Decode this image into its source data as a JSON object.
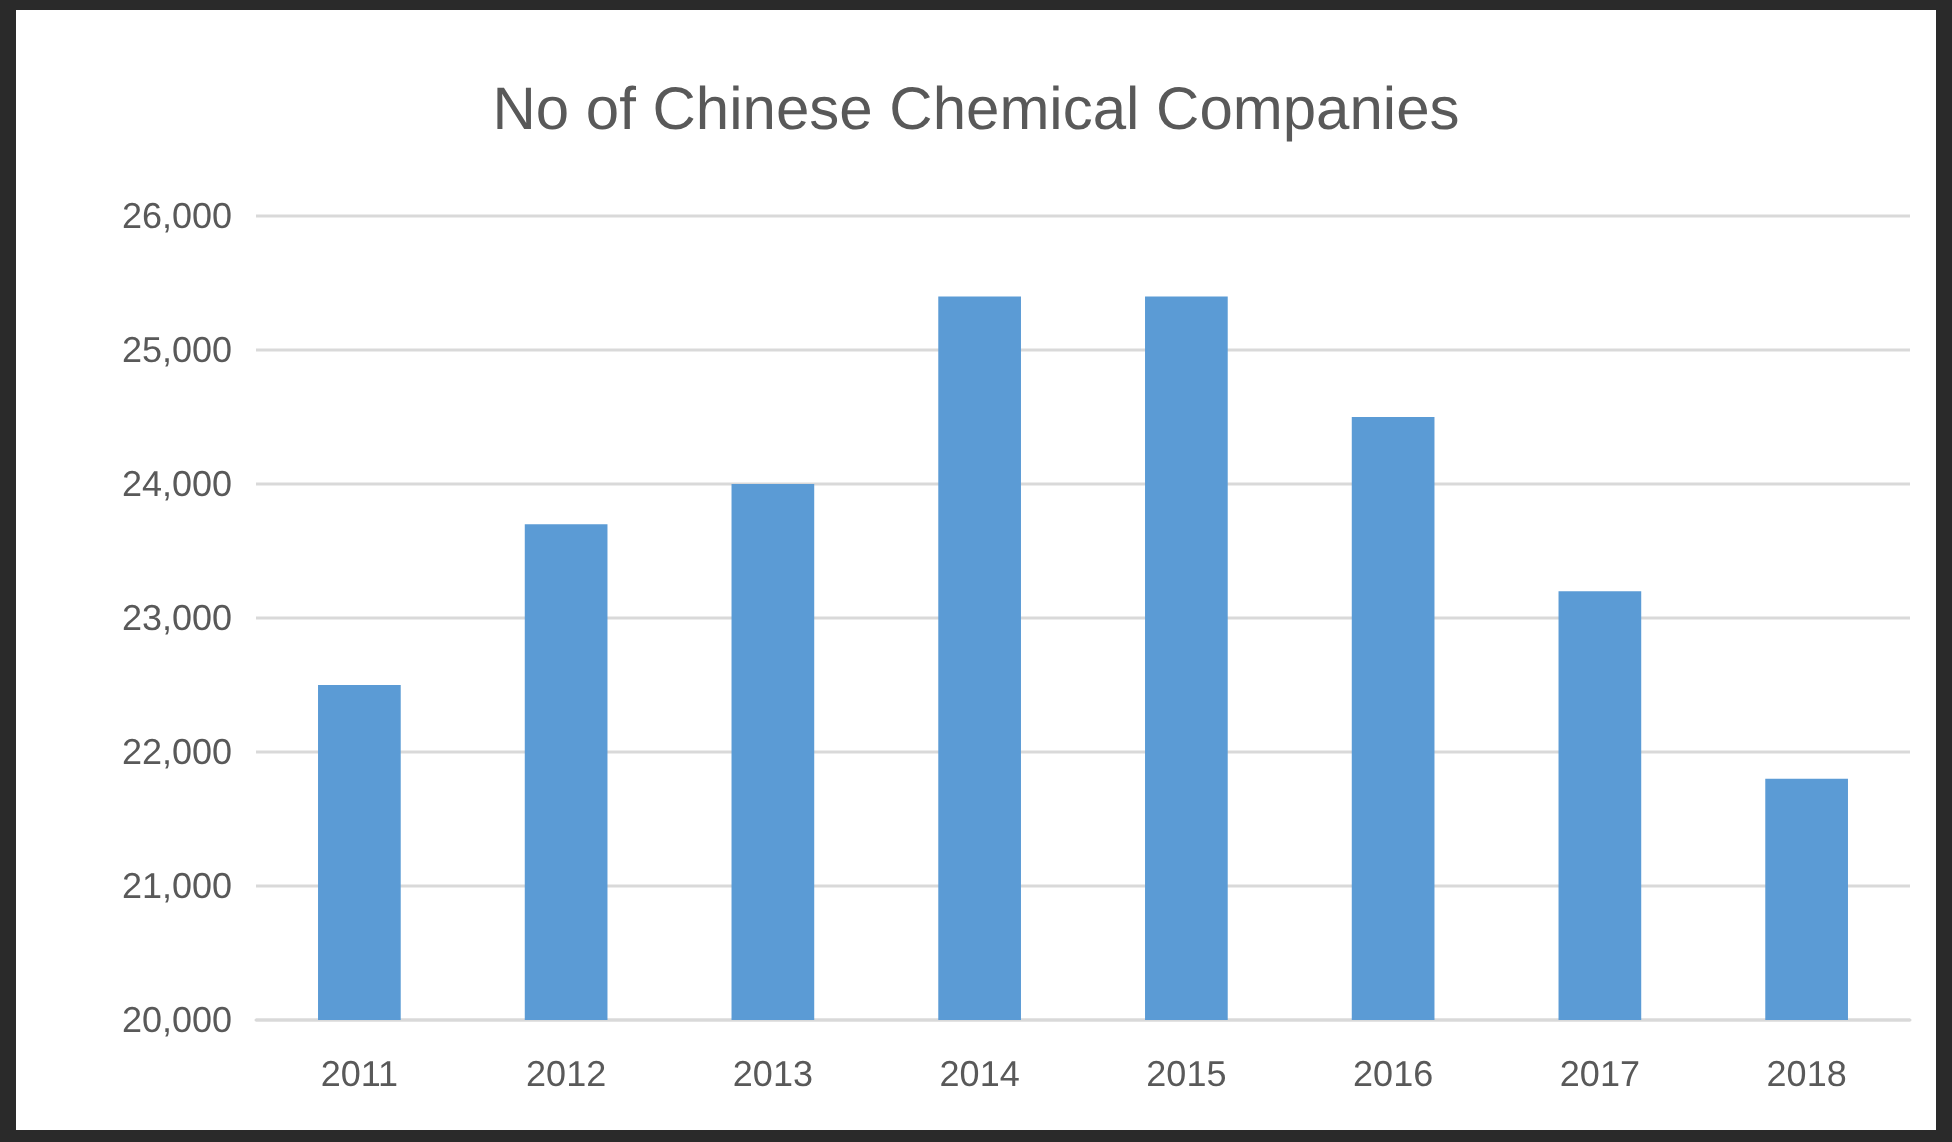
{
  "chart_data": {
    "type": "bar",
    "title": "No of Chinese Chemical Companies",
    "categories": [
      "2011",
      "2012",
      "2013",
      "2014",
      "2015",
      "2016",
      "2017",
      "2018"
    ],
    "values": [
      22500,
      23700,
      24000,
      25400,
      25400,
      24500,
      23200,
      21800
    ],
    "color": "#5b9bd5",
    "ylim": [
      20000,
      26000
    ],
    "yticks": [
      {
        "value": 20000,
        "label": "20,000"
      },
      {
        "value": 21000,
        "label": "21,000"
      },
      {
        "value": 22000,
        "label": "22,000"
      },
      {
        "value": 23000,
        "label": "23,000"
      },
      {
        "value": 24000,
        "label": "24,000"
      },
      {
        "value": 25000,
        "label": "25,000"
      },
      {
        "value": 26000,
        "label": "26,000"
      }
    ],
    "grid": "y"
  }
}
